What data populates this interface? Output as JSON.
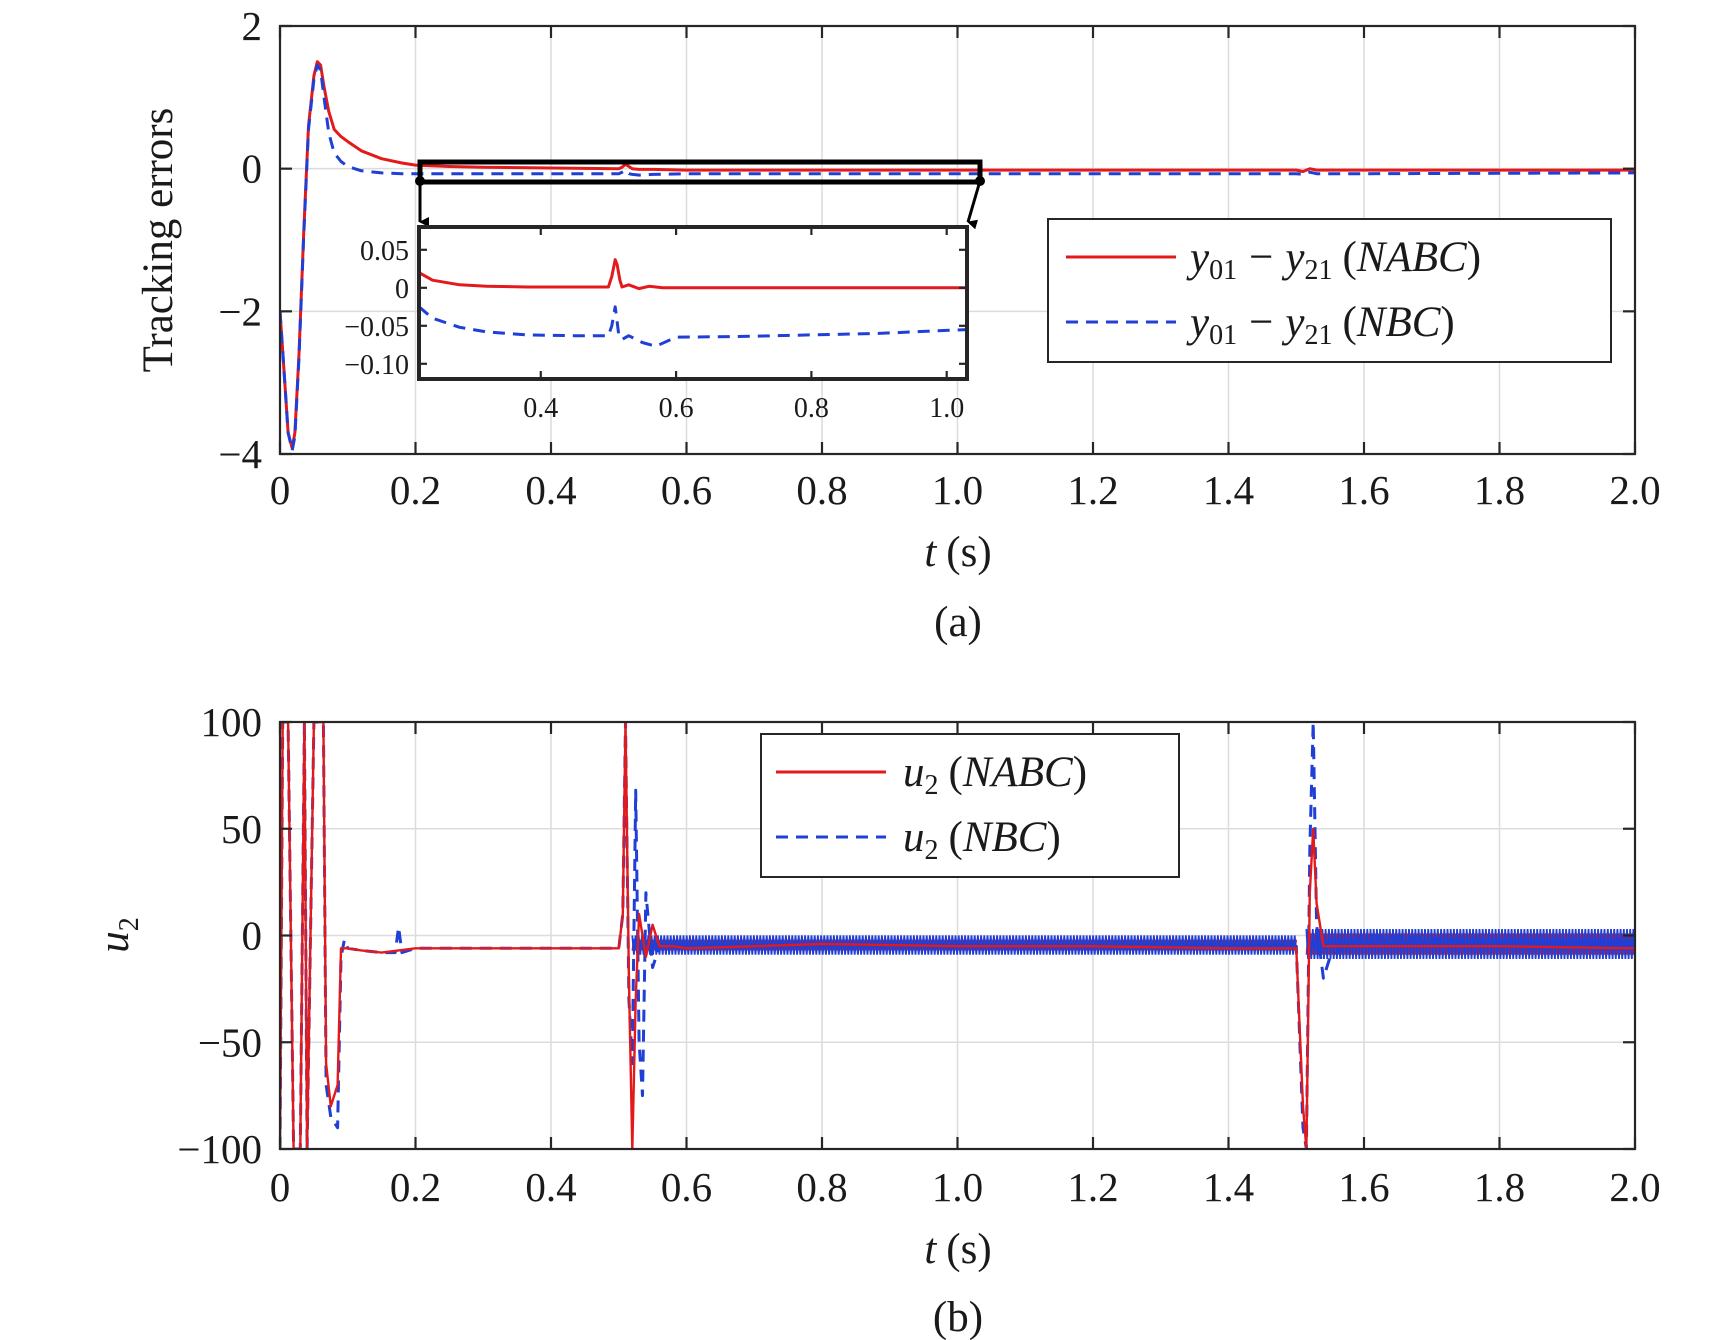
{
  "colors": {
    "nabc": "#e31a1c",
    "nbc": "#1f3fd6",
    "axis": "#262626",
    "grid": "#dcdcdc"
  },
  "chart_data": [
    {
      "type": "line",
      "panel": "a",
      "caption": "(a)",
      "xlabel_var": "t",
      "xlabel_unit": "(s)",
      "ylabel": "Tracking errors",
      "xlim": [
        0,
        2.0
      ],
      "ylim": [
        -4,
        2
      ],
      "xticks": [
        0,
        0.2,
        0.4,
        0.6,
        0.8,
        1.0,
        1.2,
        1.4,
        1.6,
        1.8,
        2.0
      ],
      "xtick_labels": [
        "0",
        "0.2",
        "0.4",
        "0.6",
        "0.8",
        "1.0",
        "1.2",
        "1.4",
        "1.6",
        "1.8",
        "2.0"
      ],
      "yticks": [
        -4,
        -2,
        0,
        2
      ],
      "ytick_labels": [
        "−4",
        "−2",
        "0",
        "2"
      ],
      "grid": true,
      "legend": {
        "position": "right",
        "entries": [
          {
            "series": 0,
            "v1": "y",
            "s1": "01",
            "minus": "−",
            "v2": "y",
            "s2": "21",
            "method": "NABC",
            "style": "solid"
          },
          {
            "series": 1,
            "v1": "y",
            "s1": "01",
            "minus": "−",
            "v2": "y",
            "s2": "21",
            "method": "NBC",
            "style": "dashed"
          }
        ]
      },
      "series": [
        {
          "name": "y01 − y21 (NABC)",
          "x": [
            0,
            0.005,
            0.012,
            0.018,
            0.022,
            0.028,
            0.035,
            0.042,
            0.05,
            0.055,
            0.06,
            0.065,
            0.072,
            0.08,
            0.09,
            0.1,
            0.12,
            0.15,
            0.18,
            0.2,
            0.25,
            0.3,
            0.4,
            0.5,
            0.505,
            0.51,
            0.515,
            0.52,
            0.53,
            0.55,
            0.6,
            0.8,
            1.0,
            1.2,
            1.5,
            1.51,
            1.52,
            1.53,
            1.6,
            2.0
          ],
          "y": [
            -2.0,
            -2.7,
            -3.7,
            -3.92,
            -3.7,
            -2.6,
            -0.9,
            0.6,
            1.3,
            1.5,
            1.45,
            1.15,
            0.8,
            0.55,
            0.45,
            0.38,
            0.25,
            0.14,
            0.08,
            0.05,
            0.03,
            0.02,
            0.01,
            0.0,
            0.02,
            0.06,
            0.03,
            0.0,
            -0.01,
            -0.01,
            -0.02,
            -0.02,
            -0.02,
            -0.02,
            -0.02,
            -0.04,
            0.0,
            -0.02,
            -0.02,
            -0.02
          ]
        },
        {
          "name": "y01 − y21 (NBC)",
          "x": [
            0,
            0.005,
            0.012,
            0.018,
            0.022,
            0.028,
            0.035,
            0.042,
            0.05,
            0.055,
            0.06,
            0.065,
            0.072,
            0.08,
            0.09,
            0.1,
            0.12,
            0.15,
            0.18,
            0.2,
            0.25,
            0.3,
            0.4,
            0.5,
            0.505,
            0.51,
            0.515,
            0.52,
            0.53,
            0.55,
            0.6,
            0.8,
            1.0,
            1.2,
            1.5,
            1.51,
            1.52,
            1.53,
            1.6,
            2.0
          ],
          "y": [
            -2.0,
            -2.7,
            -3.7,
            -3.95,
            -3.75,
            -2.65,
            -0.95,
            0.55,
            1.25,
            1.45,
            1.38,
            1.0,
            0.5,
            0.22,
            0.1,
            0.03,
            -0.03,
            -0.06,
            -0.07,
            -0.07,
            -0.07,
            -0.07,
            -0.07,
            -0.07,
            -0.05,
            -0.02,
            -0.07,
            -0.08,
            -0.09,
            -0.08,
            -0.07,
            -0.07,
            -0.07,
            -0.07,
            -0.07,
            -0.08,
            -0.05,
            -0.07,
            -0.07,
            -0.06
          ]
        }
      ],
      "inset": {
        "xlim": [
          0.22,
          1.03
        ],
        "ylim": [
          -0.12,
          0.08
        ],
        "xticks": [
          0.4,
          0.6,
          0.8,
          1.0
        ],
        "xtick_labels": [
          "0.4",
          "0.6",
          "0.8",
          "1.0"
        ],
        "yticks": [
          0.05,
          0,
          -0.05,
          -0.1
        ],
        "ytick_labels": [
          "0.05",
          "0",
          "−0.05",
          "−0.10"
        ],
        "zoom_box_x": [
          0.21,
          1.04
        ],
        "zoom_box_y": [
          -0.12,
          0.1
        ],
        "series": [
          {
            "x": [
              0.22,
              0.24,
              0.28,
              0.32,
              0.38,
              0.45,
              0.5,
              0.505,
              0.51,
              0.513,
              0.517,
              0.52,
              0.53,
              0.545,
              0.56,
              0.58,
              0.65,
              0.8,
              1.0,
              1.03
            ],
            "y": [
              0.02,
              0.01,
              0.004,
              0.002,
              0.001,
              0.001,
              0.001,
              0.015,
              0.037,
              0.03,
              0.01,
              0.001,
              0.004,
              -0.001,
              0.002,
              0.0,
              0.0,
              0.0,
              0.0,
              0.0
            ]
          },
          {
            "x": [
              0.22,
              0.24,
              0.28,
              0.32,
              0.38,
              0.45,
              0.5,
              0.505,
              0.51,
              0.515,
              0.52,
              0.53,
              0.55,
              0.57,
              0.6,
              0.7,
              0.8,
              0.9,
              1.0,
              1.03
            ],
            "y": [
              -0.025,
              -0.04,
              -0.052,
              -0.058,
              -0.062,
              -0.063,
              -0.063,
              -0.05,
              -0.025,
              -0.06,
              -0.068,
              -0.063,
              -0.072,
              -0.077,
              -0.065,
              -0.064,
              -0.062,
              -0.06,
              -0.056,
              -0.055
            ]
          }
        ]
      }
    },
    {
      "type": "line",
      "panel": "b",
      "caption": "(b)",
      "xlabel_var": "t",
      "xlabel_unit": "(s)",
      "ylabel_var": "u",
      "ylabel_sub": "2",
      "xlim": [
        0,
        2.0
      ],
      "ylim": [
        -100,
        100
      ],
      "xticks": [
        0,
        0.2,
        0.4,
        0.6,
        0.8,
        1.0,
        1.2,
        1.4,
        1.6,
        1.8,
        2.0
      ],
      "xtick_labels": [
        "0",
        "0.2",
        "0.4",
        "0.6",
        "0.8",
        "1.0",
        "1.2",
        "1.4",
        "1.6",
        "1.8",
        "2.0"
      ],
      "yticks": [
        -100,
        -50,
        0,
        50,
        100
      ],
      "ytick_labels": [
        "−100",
        "−50",
        "0",
        "50",
        "100"
      ],
      "grid": true,
      "legend": {
        "position": "top-center",
        "entries": [
          {
            "series": 0,
            "v1": "u",
            "s1": "2",
            "method": "NABC",
            "style": "solid"
          },
          {
            "series": 1,
            "v1": "u",
            "s1": "2",
            "method": "NBC",
            "style": "dashed"
          }
        ]
      },
      "series": [
        {
          "name": "u2 (NABC)",
          "x": [
            0,
            0.004,
            0.008,
            0.012,
            0.02,
            0.03,
            0.036,
            0.04,
            0.05,
            0.06,
            0.064,
            0.068,
            0.075,
            0.085,
            0.09,
            0.1,
            0.12,
            0.15,
            0.2,
            0.3,
            0.4,
            0.5,
            0.506,
            0.51,
            0.515,
            0.52,
            0.525,
            0.53,
            0.54,
            0.55,
            0.56,
            0.58,
            0.6,
            0.7,
            0.8,
            1.0,
            1.2,
            1.4,
            1.5,
            1.51,
            1.515,
            1.52,
            1.525,
            1.53,
            1.54,
            1.55,
            1.6,
            1.8,
            2.0
          ],
          "y": [
            -100,
            100,
            100,
            100,
            -100,
            -100,
            100,
            -100,
            100,
            100,
            100,
            -60,
            -80,
            -70,
            -6,
            -6,
            -7,
            -8,
            -6,
            -6,
            -6,
            -6,
            10,
            100,
            -20,
            -100,
            -30,
            10,
            -10,
            5,
            -5,
            -5,
            -6,
            -5,
            -4,
            -5,
            -5,
            -6,
            -6,
            -80,
            -100,
            20,
            50,
            15,
            -5,
            -5,
            -5,
            -5,
            -6
          ]
        },
        {
          "name": "u2 (NBC)",
          "x": [
            0,
            0.004,
            0.008,
            0.012,
            0.02,
            0.03,
            0.036,
            0.04,
            0.05,
            0.06,
            0.064,
            0.068,
            0.075,
            0.085,
            0.09,
            0.095,
            0.1,
            0.12,
            0.15,
            0.17,
            0.175,
            0.18,
            0.2,
            0.3,
            0.4,
            0.5,
            0.506,
            0.51,
            0.515,
            0.52,
            0.525,
            0.53,
            0.535,
            0.54,
            0.55,
            0.56,
            0.58,
            0.6,
            0.7,
            0.8,
            1.0,
            1.2,
            1.4,
            1.5,
            1.51,
            1.515,
            1.52,
            1.525,
            1.53,
            1.54,
            1.55,
            1.6,
            1.8,
            2.0
          ],
          "y": [
            -100,
            100,
            100,
            100,
            -100,
            -100,
            100,
            -100,
            100,
            100,
            100,
            -70,
            -85,
            -90,
            -10,
            -2,
            -6,
            -7,
            -8,
            -8,
            4,
            -8,
            -6,
            -6,
            -6,
            -6,
            10,
            100,
            -30,
            -60,
            68,
            -50,
            -75,
            20,
            -15,
            -5,
            -3,
            -5,
            -4,
            -4,
            -4,
            -4,
            -5,
            -5,
            -90,
            -100,
            40,
            100,
            5,
            -20,
            -10,
            0,
            -3,
            -4
          ]
        },
        {
          "name": "band",
          "x_start": [
            0.52,
            1.515
          ],
          "x_end": [
            1.5,
            2.0
          ],
          "lower": [
            -9,
            -11
          ],
          "upper": [
            0,
            3
          ]
        }
      ]
    }
  ]
}
